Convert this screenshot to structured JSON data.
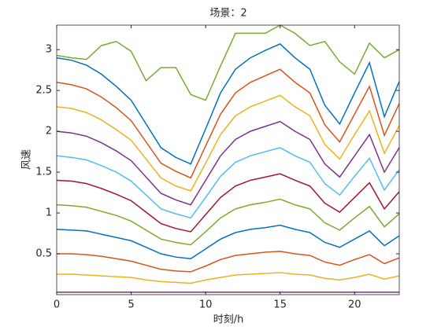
{
  "chart_data": {
    "type": "line",
    "title": "场景：2",
    "xlabel": "时刻/h",
    "ylabel": "风速",
    "x": [
      0,
      1,
      2,
      3,
      4,
      5,
      6,
      7,
      8,
      9,
      10,
      11,
      12,
      13,
      14,
      15,
      16,
      17,
      18,
      19,
      20,
      21,
      22,
      23
    ],
    "xlim": [
      0,
      23
    ],
    "xticks": [
      0,
      5,
      10,
      15,
      20
    ],
    "ylim": [
      0,
      3.3
    ],
    "yticks": [
      0.5,
      1,
      1.5,
      2,
      2.5,
      3
    ],
    "series": [
      {
        "color": "#77ac30",
        "values": [
          2.93,
          2.9,
          2.88,
          3.05,
          3.1,
          2.98,
          2.62,
          2.78,
          2.78,
          2.45,
          2.38,
          2.8,
          3.2,
          3.2,
          3.2,
          3.3,
          3.2,
          3.05,
          3.1,
          2.85,
          2.7,
          3.08,
          2.9,
          3.0
        ]
      },
      {
        "color": "#0072bd",
        "values": [
          2.9,
          2.87,
          2.81,
          2.7,
          2.55,
          2.38,
          2.09,
          1.8,
          1.68,
          1.6,
          2.03,
          2.47,
          2.76,
          2.9,
          2.99,
          3.07,
          2.9,
          2.76,
          2.32,
          2.09,
          2.47,
          2.84,
          2.18,
          2.61
        ]
      },
      {
        "color": "#d95319",
        "values": [
          2.6,
          2.57,
          2.52,
          2.42,
          2.29,
          2.13,
          1.87,
          1.61,
          1.51,
          1.43,
          1.82,
          2.21,
          2.47,
          2.6,
          2.68,
          2.76,
          2.6,
          2.47,
          2.08,
          1.87,
          2.21,
          2.55,
          1.95,
          2.34
        ]
      },
      {
        "color": "#edb120",
        "values": [
          2.3,
          2.28,
          2.23,
          2.14,
          2.02,
          1.89,
          1.66,
          1.43,
          1.33,
          1.27,
          1.61,
          1.96,
          2.19,
          2.3,
          2.37,
          2.44,
          2.3,
          2.19,
          1.84,
          1.66,
          1.96,
          2.25,
          1.73,
          2.07
        ]
      },
      {
        "color": "#7e2f8e",
        "values": [
          2,
          1.98,
          1.94,
          1.86,
          1.76,
          1.64,
          1.44,
          1.24,
          1.16,
          1.1,
          1.4,
          1.7,
          1.9,
          2,
          2.06,
          2.12,
          2,
          1.9,
          1.6,
          1.44,
          1.7,
          1.96,
          1.5,
          1.8
        ]
      },
      {
        "color": "#4dbeee",
        "values": [
          1.7,
          1.68,
          1.65,
          1.58,
          1.5,
          1.39,
          1.22,
          1.05,
          0.99,
          0.94,
          1.19,
          1.45,
          1.62,
          1.7,
          1.75,
          1.8,
          1.7,
          1.62,
          1.36,
          1.22,
          1.45,
          1.67,
          1.28,
          1.53
        ]
      },
      {
        "color": "#a2142f",
        "values": [
          1.4,
          1.39,
          1.36,
          1.3,
          1.23,
          1.15,
          1.01,
          0.87,
          0.81,
          0.77,
          0.98,
          1.19,
          1.33,
          1.4,
          1.44,
          1.48,
          1.4,
          1.33,
          1.12,
          1.01,
          1.19,
          1.37,
          1.05,
          1.26
        ]
      },
      {
        "color": "#77ac30",
        "values": [
          1.1,
          1.09,
          1.07,
          1.02,
          0.97,
          0.9,
          0.79,
          0.68,
          0.64,
          0.61,
          0.77,
          0.94,
          1.05,
          1.1,
          1.13,
          1.17,
          1.1,
          1.05,
          0.88,
          0.79,
          0.94,
          1.08,
          0.83,
          0.99
        ]
      },
      {
        "color": "#0072bd",
        "values": [
          0.8,
          0.79,
          0.78,
          0.74,
          0.7,
          0.66,
          0.58,
          0.5,
          0.46,
          0.44,
          0.56,
          0.68,
          0.76,
          0.8,
          0.82,
          0.85,
          0.8,
          0.76,
          0.64,
          0.58,
          0.68,
          0.78,
          0.6,
          0.72
        ]
      },
      {
        "color": "#d95319",
        "values": [
          0.5,
          0.5,
          0.49,
          0.47,
          0.44,
          0.41,
          0.36,
          0.31,
          0.29,
          0.28,
          0.35,
          0.43,
          0.48,
          0.5,
          0.52,
          0.53,
          0.5,
          0.48,
          0.4,
          0.36,
          0.43,
          0.49,
          0.38,
          0.45
        ]
      },
      {
        "color": "#edb120",
        "values": [
          0.25,
          0.25,
          0.24,
          0.23,
          0.22,
          0.21,
          0.18,
          0.16,
          0.15,
          0.14,
          0.18,
          0.21,
          0.24,
          0.25,
          0.26,
          0.27,
          0.25,
          0.24,
          0.2,
          0.18,
          0.21,
          0.25,
          0.19,
          0.23
        ]
      },
      {
        "color": "#7e2f8e",
        "values": [
          0.03,
          0.03,
          0.03,
          0.03,
          0.03,
          0.03,
          0.03,
          0.03,
          0.03,
          0.03,
          0.03,
          0.03,
          0.03,
          0.03,
          0.03,
          0.03,
          0.03,
          0.03,
          0.03,
          0.03,
          0.03,
          0.03,
          0.03,
          0.03
        ]
      }
    ]
  }
}
